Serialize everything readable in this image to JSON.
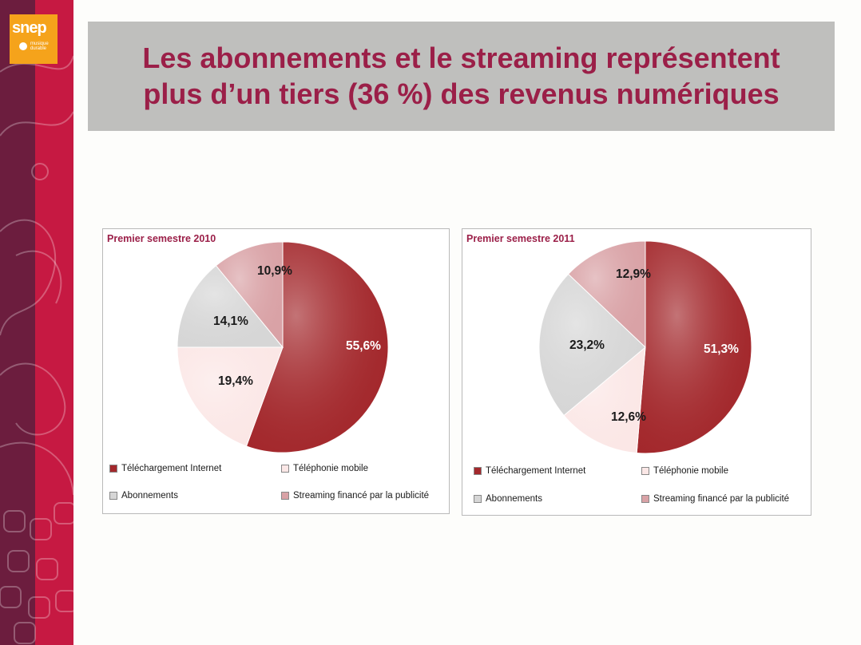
{
  "slide": {
    "title_line1": "Les abonnements et le streaming représentent",
    "title_line2": "plus d’un tiers (36 %) des revenus numériques"
  },
  "logo": {
    "text": "snep",
    "subtext": "musique durable"
  },
  "colors": {
    "title_text": "#9b1f48",
    "title_band": "#bfbfbd",
    "download": "#a3282c",
    "mobile": "#fbe7e6",
    "subscription": "#d6d6d6",
    "streaming_ads": "#d9a2a6",
    "sidebar_dark": "#6c1d3e",
    "sidebar_red": "#c61942",
    "logo_orange": "#f5a31b"
  },
  "chart_data": [
    {
      "type": "pie",
      "title": "Premier semestre 2010",
      "categories": [
        "Téléchargement Internet",
        "Téléphonie mobile",
        "Abonnements",
        "Streaming financé par la publicité"
      ],
      "values": [
        55.6,
        19.4,
        14.1,
        10.9
      ],
      "labels": [
        "55,6%",
        "19,4%",
        "14,1%",
        "10,9%"
      ],
      "legend_position": "bottom"
    },
    {
      "type": "pie",
      "title": "Premier semestre 2011",
      "categories": [
        "Téléchargement Internet",
        "Téléphonie mobile",
        "Abonnements",
        "Streaming financé par la publicité"
      ],
      "values": [
        51.3,
        12.6,
        23.2,
        12.9
      ],
      "labels": [
        "51,3%",
        "12,6%",
        "23,2%",
        "12,9%"
      ],
      "legend_position": "bottom"
    }
  ]
}
